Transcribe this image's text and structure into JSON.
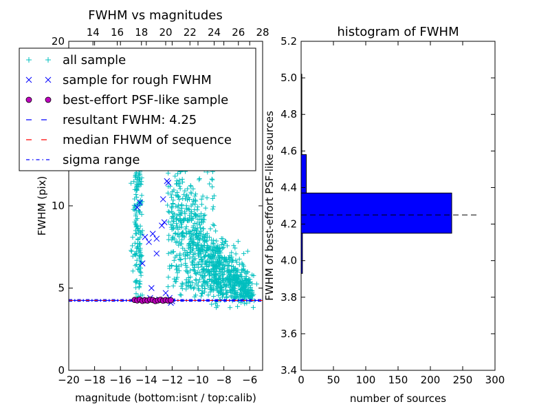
{
  "chart_data": [
    {
      "type": "scatter",
      "title": "FWHM vs magnitudes",
      "xlabel": "magnitude (bottom:isnt / top:calib)",
      "ylabel": "FWHM (pix)",
      "xlim": [
        -20,
        -5
      ],
      "ylim": [
        0,
        20
      ],
      "xticks": [
        "−20",
        "−18",
        "−16",
        "−14",
        "−12",
        "−10",
        "−8",
        "−6"
      ],
      "yticks": [
        "0",
        "5",
        "10"
      ],
      "top_xlim": [
        12,
        28
      ],
      "top_xticks": [
        "14",
        "16",
        "18",
        "20",
        "22",
        "24",
        "26",
        "28"
      ],
      "top_ytick": "20",
      "resultant_fwhm": 4.25,
      "median_fwhm": 4.25,
      "sigma_range": [
        4.2,
        4.3
      ],
      "legend_position": "upper-left",
      "legend": [
        {
          "label": "all sample",
          "marker": "+",
          "color": "#00bfbf"
        },
        {
          "label": "sample for rough FWHM",
          "marker": "x",
          "color": "#0000ff"
        },
        {
          "label": "best-effort PSF-like sample",
          "marker": "o",
          "color": "#bf00bf"
        },
        {
          "label": "resultant FWHM: 4.25",
          "marker": "dashed",
          "color": "#0000ff"
        },
        {
          "label": "median FHWM of sequence",
          "marker": "dashed",
          "color": "#ff0000"
        },
        {
          "label": "sigma range",
          "marker": "dashdot",
          "color": "#0000ff"
        }
      ],
      "series": [
        {
          "name": "sample for rough FWHM",
          "points": [
            [
              -14.7,
              9.9
            ],
            [
              -14.5,
              10.2
            ],
            [
              -14.1,
              8.1
            ],
            [
              -13.8,
              7.8
            ],
            [
              -13.5,
              8.3
            ],
            [
              -13.2,
              8.0
            ],
            [
              -12.8,
              8.8
            ],
            [
              -12.6,
              9.0
            ],
            [
              -12.7,
              10.4
            ],
            [
              -14.3,
              6.5
            ],
            [
              -13.6,
              5.0
            ],
            [
              -12.3,
              11.4
            ],
            [
              -12.4,
              11.5
            ],
            [
              -13.2,
              7.1
            ],
            [
              -12.5,
              4.7
            ],
            [
              -12.2,
              4.4
            ],
            [
              -13.0,
              4.3
            ],
            [
              -12.0,
              4.2
            ],
            [
              -12.1,
              4.1
            ],
            [
              -13.7,
              4.4
            ],
            [
              -14.0,
              4.3
            ]
          ]
        },
        {
          "name": "best-effort PSF-like sample",
          "points": [
            [
              -14.9,
              4.28
            ],
            [
              -14.7,
              4.25
            ],
            [
              -14.5,
              4.3
            ],
            [
              -14.3,
              4.22
            ],
            [
              -14.1,
              4.26
            ],
            [
              -13.9,
              4.24
            ],
            [
              -13.7,
              4.3
            ],
            [
              -13.5,
              4.27
            ],
            [
              -13.3,
              4.21
            ],
            [
              -13.1,
              4.25
            ],
            [
              -12.9,
              4.29
            ],
            [
              -12.7,
              4.23
            ],
            [
              -12.5,
              4.27
            ],
            [
              -12.3,
              4.24
            ],
            [
              -12.1,
              4.26
            ]
          ]
        }
      ]
    },
    {
      "type": "bar",
      "orientation": "horizontal",
      "title": "histogram of FWHM",
      "xlabel": "number of sources",
      "ylabel": "FWHM of best-effort PSF-like sources",
      "xlim": [
        0,
        300
      ],
      "ylim": [
        3.4,
        5.2
      ],
      "xticks": [
        "0",
        "50",
        "100",
        "150",
        "200",
        "250",
        "300"
      ],
      "yticks": [
        "3.4",
        "3.6",
        "3.8",
        "4.0",
        "4.2",
        "4.4",
        "4.6",
        "4.8",
        "5.0",
        "5.2"
      ],
      "bins": [
        {
          "y0": 3.93,
          "y1": 4.15,
          "count": 2
        },
        {
          "y0": 4.15,
          "y1": 4.37,
          "count": 233
        },
        {
          "y0": 4.37,
          "y1": 4.58,
          "count": 8
        },
        {
          "y0": 4.58,
          "y1": 5.02,
          "count": 1
        }
      ],
      "reference_line": 4.25
    }
  ]
}
